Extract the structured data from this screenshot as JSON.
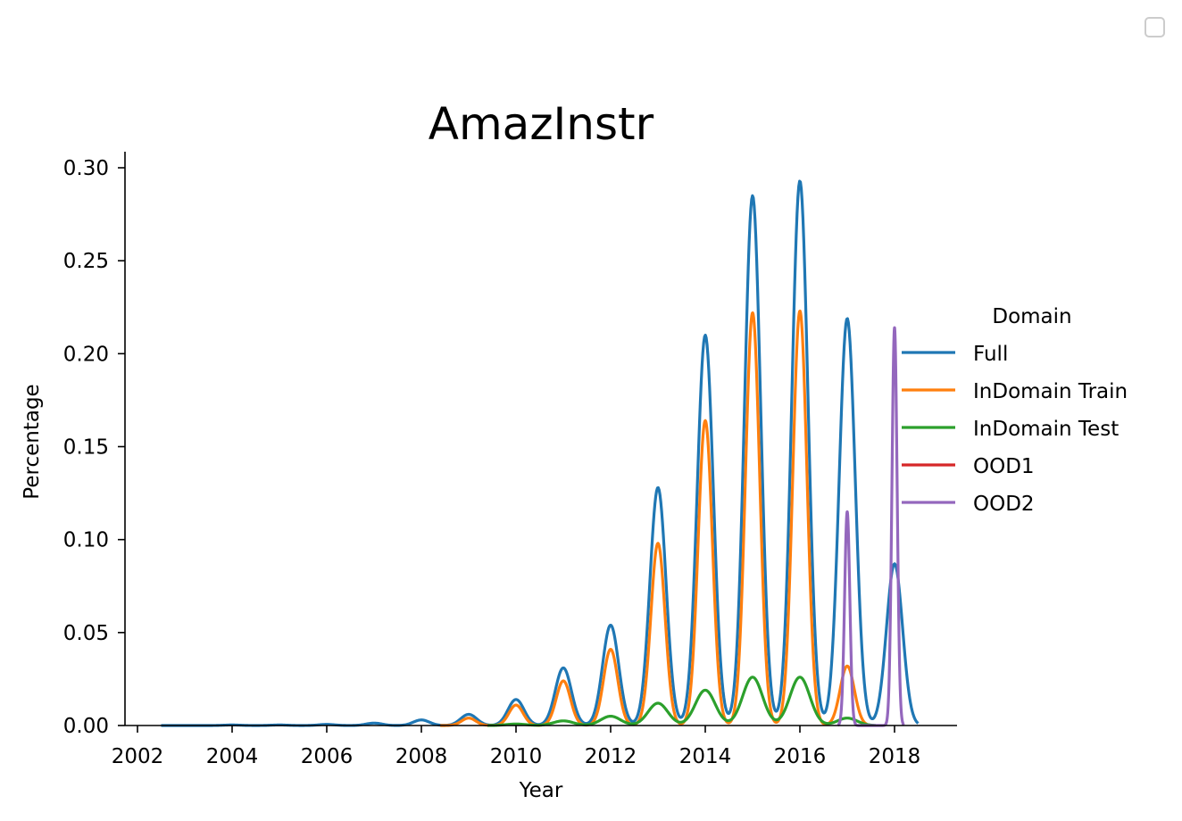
{
  "chart_data": {
    "type": "line",
    "title": "AmazInstr",
    "xlabel": "Year",
    "ylabel": "Percentage",
    "xlim": [
      2001.7,
      2019.3
    ],
    "ylim": [
      0,
      0.31
    ],
    "xticks": [
      2002,
      2004,
      2006,
      2008,
      2010,
      2012,
      2014,
      2016,
      2018
    ],
    "xtick_labels": [
      "2002",
      "2004",
      "2006",
      "2008",
      "2010",
      "2012",
      "2014",
      "2016",
      "2018"
    ],
    "yticks": [
      0,
      0.05,
      0.1,
      0.15,
      0.2,
      0.25,
      0.3
    ],
    "ytick_labels": [
      "0.00",
      "0.05",
      "0.10",
      "0.15",
      "0.20",
      "0.25",
      "0.30"
    ],
    "legend_title": "Domain",
    "legend_position": "right",
    "grid": false,
    "series": [
      {
        "name": "Full",
        "color": "#1f77b4",
        "points": [
          {
            "x": 2002.5,
            "y": 0.0
          },
          {
            "x": 2004,
            "y": 0.0003
          },
          {
            "x": 2005,
            "y": 0.0003
          },
          {
            "x": 2006,
            "y": 0.0006
          },
          {
            "x": 2007,
            "y": 0.0013
          },
          {
            "x": 2008,
            "y": 0.003
          },
          {
            "x": 2009,
            "y": 0.006
          },
          {
            "x": 2010,
            "y": 0.014
          },
          {
            "x": 2011,
            "y": 0.031
          },
          {
            "x": 2012,
            "y": 0.054
          },
          {
            "x": 2013,
            "y": 0.128
          },
          {
            "x": 2014,
            "y": 0.21
          },
          {
            "x": 2015,
            "y": 0.285
          },
          {
            "x": 2016,
            "y": 0.293
          },
          {
            "x": 2017,
            "y": 0.219
          },
          {
            "x": 2018,
            "y": 0.087
          }
        ],
        "width": 0.17,
        "x_end": 2018.5
      },
      {
        "name": "InDomain Train",
        "color": "#ff7f0e",
        "points": [
          {
            "x": 2009,
            "y": 0.004
          },
          {
            "x": 2010,
            "y": 0.011
          },
          {
            "x": 2011,
            "y": 0.024
          },
          {
            "x": 2012,
            "y": 0.041
          },
          {
            "x": 2013,
            "y": 0.098
          },
          {
            "x": 2014,
            "y": 0.164
          },
          {
            "x": 2015,
            "y": 0.222
          },
          {
            "x": 2016,
            "y": 0.223
          },
          {
            "x": 2017,
            "y": 0.032
          }
        ],
        "width": 0.15,
        "x_start": 2008.4,
        "x_end": 2017.5
      },
      {
        "name": "InDomain Test",
        "color": "#2ca02c",
        "points": [
          {
            "x": 2010,
            "y": 0.0008
          },
          {
            "x": 2011,
            "y": 0.0025
          },
          {
            "x": 2012,
            "y": 0.005
          },
          {
            "x": 2013,
            "y": 0.012
          },
          {
            "x": 2014,
            "y": 0.019
          },
          {
            "x": 2015,
            "y": 0.026
          },
          {
            "x": 2016,
            "y": 0.026
          },
          {
            "x": 2017,
            "y": 0.004
          }
        ],
        "width": 0.21,
        "x_start": 2009.4,
        "x_end": 2017.6
      },
      {
        "name": "OOD1",
        "color": "#d62728",
        "points": [],
        "width": 0.1
      },
      {
        "name": "OOD2",
        "color": "#9467bd",
        "points": [
          {
            "x": 2017,
            "y": 0.115
          },
          {
            "x": 2018,
            "y": 0.214
          }
        ],
        "width": 0.055,
        "x_start": 2016.8,
        "x_end": 2018.2
      }
    ]
  }
}
